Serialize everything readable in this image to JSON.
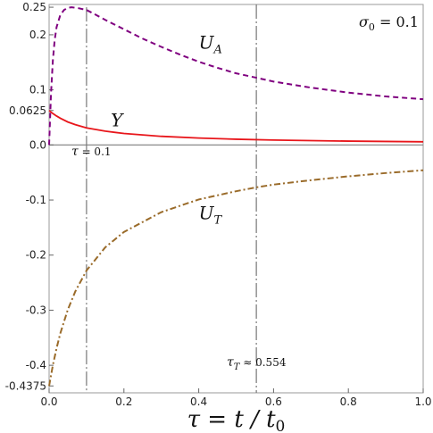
{
  "chart_data": {
    "type": "line",
    "xlabel": "τ = t / t",
    "xlabel_sub": "0",
    "xlim": [
      0,
      1
    ],
    "ylim": [
      -0.45,
      0.255
    ],
    "x_ticks": [
      {
        "value": 0.0,
        "label": "0.0"
      },
      {
        "value": 0.2,
        "label": "0.2"
      },
      {
        "value": 0.4,
        "label": "0.4"
      },
      {
        "value": 0.6,
        "label": "0.6"
      },
      {
        "value": 0.8,
        "label": "0.8"
      },
      {
        "value": 1.0,
        "label": "1.0"
      }
    ],
    "y_ticks": [
      {
        "value": 0.25,
        "label": "0.25"
      },
      {
        "value": 0.2,
        "label": "0.2"
      },
      {
        "value": 0.1,
        "label": "0.1"
      },
      {
        "value": 0.0625,
        "label": "0.0625"
      },
      {
        "value": 0.0,
        "label": "0.0"
      },
      {
        "value": -0.1,
        "label": "-0.1"
      },
      {
        "value": -0.2,
        "label": "-0.2"
      },
      {
        "value": -0.3,
        "label": "-0.3"
      },
      {
        "value": -0.4,
        "label": "-0.4"
      },
      {
        "value": -0.4375,
        "label": "-0.4375"
      }
    ],
    "annotation": {
      "main": "σ",
      "sub": "0",
      "rest": " = 0.1"
    },
    "vlines": [
      {
        "x": 0.1,
        "y_top": 0.25,
        "main": "τ",
        "sub": "",
        "rest": " = 0.1"
      },
      {
        "x": 0.554,
        "y_top": 0.255,
        "main": "τ",
        "sub": "T",
        "rest": " ≈ 0.554"
      }
    ],
    "series": [
      {
        "name": "U",
        "name_sub": "A",
        "style": "dashed",
        "color": "#800080",
        "label_pos": {
          "x": 0.4,
          "y": 0.175
        },
        "points": [
          [
            0,
            0
          ],
          [
            0.005,
            0.092
          ],
          [
            0.01,
            0.153
          ],
          [
            0.015,
            0.191
          ],
          [
            0.02,
            0.214
          ],
          [
            0.03,
            0.236
          ],
          [
            0.04,
            0.245
          ],
          [
            0.05,
            0.249
          ],
          [
            0.06,
            0.25
          ],
          [
            0.07,
            0.249
          ],
          [
            0.08,
            0.248
          ],
          [
            0.1,
            0.245
          ],
          [
            0.12,
            0.238
          ],
          [
            0.15,
            0.227
          ],
          [
            0.2,
            0.21
          ],
          [
            0.25,
            0.193
          ],
          [
            0.3,
            0.178
          ],
          [
            0.35,
            0.164
          ],
          [
            0.4,
            0.151
          ],
          [
            0.45,
            0.14
          ],
          [
            0.5,
            0.13
          ],
          [
            0.554,
            0.122
          ],
          [
            0.6,
            0.115
          ],
          [
            0.7,
            0.104
          ],
          [
            0.8,
            0.095
          ],
          [
            0.9,
            0.088
          ],
          [
            1.0,
            0.083
          ]
        ]
      },
      {
        "name": "Y",
        "name_sub": "",
        "style": "solid",
        "color": "#e8161b",
        "label_pos": {
          "x": 0.165,
          "y": 0.034
        },
        "points": [
          [
            0,
            0.0625
          ],
          [
            0.01,
            0.057
          ],
          [
            0.02,
            0.0525
          ],
          [
            0.03,
            0.0485
          ],
          [
            0.05,
            0.0417
          ],
          [
            0.07,
            0.0368
          ],
          [
            0.1,
            0.031
          ],
          [
            0.15,
            0.025
          ],
          [
            0.2,
            0.0208
          ],
          [
            0.3,
            0.0156
          ],
          [
            0.4,
            0.0125
          ],
          [
            0.5,
            0.0104
          ],
          [
            0.6,
            0.0089
          ],
          [
            0.7,
            0.0078
          ],
          [
            0.8,
            0.0069
          ],
          [
            0.9,
            0.0063
          ],
          [
            1.0,
            0.0057
          ]
        ]
      },
      {
        "name": "U",
        "name_sub": "T",
        "style": "dashdot",
        "color": "#9a6b2a",
        "label_pos": {
          "x": 0.4,
          "y": -0.135
        },
        "points": [
          [
            0,
            -0.4375
          ],
          [
            0.01,
            -0.4
          ],
          [
            0.02,
            -0.369
          ],
          [
            0.03,
            -0.342
          ],
          [
            0.05,
            -0.299
          ],
          [
            0.07,
            -0.266
          ],
          [
            0.1,
            -0.228
          ],
          [
            0.15,
            -0.186
          ],
          [
            0.2,
            -0.158
          ],
          [
            0.3,
            -0.122
          ],
          [
            0.4,
            -0.099
          ],
          [
            0.5,
            -0.084
          ],
          [
            0.554,
            -0.077
          ],
          [
            0.6,
            -0.072
          ],
          [
            0.7,
            -0.064
          ],
          [
            0.8,
            -0.057
          ],
          [
            0.9,
            -0.051
          ],
          [
            1.0,
            -0.046
          ]
        ]
      }
    ]
  }
}
